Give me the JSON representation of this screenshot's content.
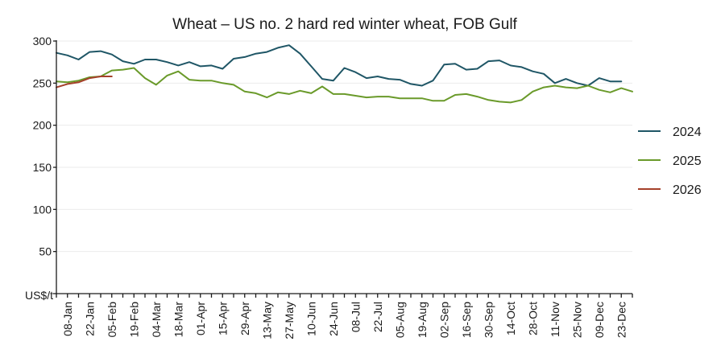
{
  "chart_data": {
    "type": "line",
    "title": "Wheat – US no. 2 hard red winter wheat, FOB Gulf",
    "ylabel": "US$/t",
    "xlabel": "",
    "ylim": [
      0,
      300
    ],
    "y_ticks": [
      0,
      50,
      100,
      150,
      200,
      250,
      300
    ],
    "y_tick_labels": [
      "",
      "50",
      "100",
      "150",
      "200",
      "250",
      "300"
    ],
    "x_range": [
      1,
      53
    ],
    "x_tick_weeks": [
      2,
      4,
      6,
      8,
      10,
      12,
      14,
      16,
      18,
      20,
      22,
      24,
      26,
      28,
      30,
      32,
      34,
      36,
      38,
      40,
      42,
      44,
      46,
      48,
      50,
      52
    ],
    "x_tick_labels": [
      "08-Jan",
      "22-Jan",
      "05-Feb",
      "19-Feb",
      "04-Mar",
      "18-Mar",
      "01-Apr",
      "15-Apr",
      "29-Apr",
      "13-May",
      "27-May",
      "10-Jun",
      "24-Jun",
      "08-Jul",
      "22-Jul",
      "05-Aug",
      "19-Aug",
      "02-Sep",
      "16-Sep",
      "30-Sep",
      "14-Oct",
      "28-Oct",
      "11-Nov",
      "25-Nov",
      "09-Dec",
      "23-Dec"
    ],
    "grid": true,
    "legend_position": "right",
    "series": [
      {
        "name": "2024",
        "color": "#1f5666",
        "x": [
          1,
          2,
          3,
          4,
          5,
          6,
          7,
          8,
          9,
          10,
          11,
          12,
          13,
          14,
          15,
          16,
          17,
          18,
          19,
          20,
          21,
          22,
          23,
          24,
          25,
          26,
          27,
          28,
          29,
          30,
          31,
          32,
          33,
          34,
          35,
          36,
          37,
          38,
          39,
          40,
          41,
          42,
          43,
          44,
          45,
          46,
          47,
          48,
          49,
          50,
          51,
          52
        ],
        "values": [
          286,
          283,
          278,
          287,
          288,
          284,
          276,
          273,
          278,
          278,
          275,
          271,
          275,
          270,
          271,
          267,
          279,
          281,
          285,
          287,
          292,
          295,
          285,
          270,
          255,
          253,
          268,
          263,
          256,
          258,
          255,
          254,
          249,
          247,
          253,
          272,
          273,
          266,
          267,
          276,
          277,
          271,
          269,
          264,
          261,
          250,
          255,
          250,
          247,
          256,
          252,
          252
        ]
      },
      {
        "name": "2025",
        "color": "#6a9a2a",
        "x": [
          1,
          2,
          3,
          4,
          5,
          6,
          7,
          8,
          9,
          10,
          11,
          12,
          13,
          14,
          15,
          16,
          17,
          18,
          19,
          20,
          21,
          22,
          23,
          24,
          25,
          26,
          27,
          28,
          29,
          30,
          31,
          32,
          33,
          34,
          35,
          36,
          37,
          38,
          39,
          40,
          41,
          42,
          43,
          44,
          45,
          46,
          47,
          48,
          49,
          50,
          51,
          52,
          53
        ],
        "values": [
          252,
          251,
          253,
          257,
          258,
          265,
          266,
          268,
          256,
          248,
          259,
          264,
          254,
          253,
          253,
          250,
          248,
          240,
          238,
          233,
          239,
          237,
          241,
          238,
          246,
          237,
          237,
          235,
          233,
          234,
          234,
          232,
          232,
          232,
          229,
          229,
          236,
          237,
          234,
          230,
          228,
          227,
          230,
          240,
          245,
          247,
          245,
          244,
          247,
          242,
          239,
          244,
          240
        ]
      },
      {
        "name": "2026",
        "color": "#a5402a",
        "x": [
          1,
          2,
          3,
          4,
          5,
          6
        ],
        "values": [
          245,
          249,
          251,
          256,
          258,
          258
        ]
      }
    ]
  }
}
